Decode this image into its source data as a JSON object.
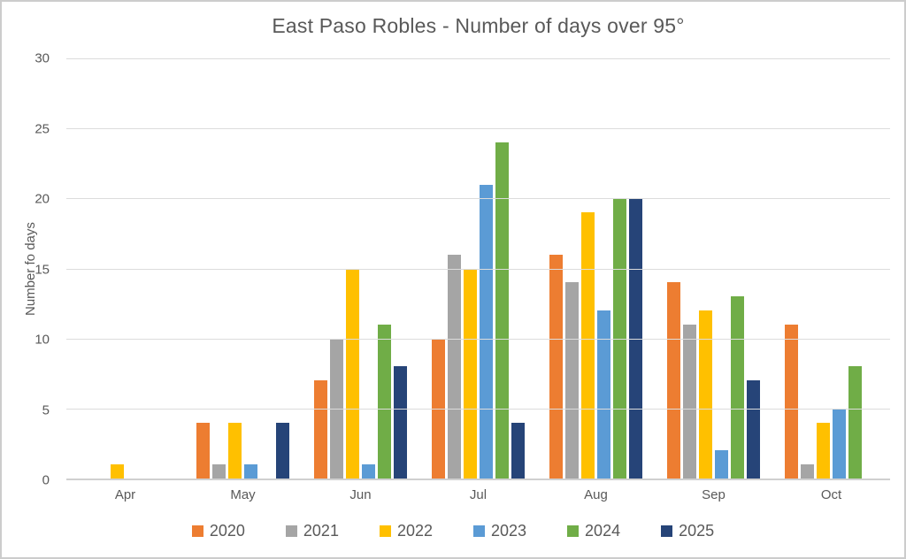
{
  "title": "East Paso Robles - Number of days over 95°",
  "chart_data": {
    "type": "bar",
    "title": "East Paso Robles - Number of days over 95°",
    "xlabel": "",
    "ylabel": "Number fo days",
    "categories": [
      "Apr",
      "May",
      "Jun",
      "Jul",
      "Aug",
      "Sep",
      "Oct"
    ],
    "series": [
      {
        "name": "2020",
        "color": "#ED7D31",
        "values": [
          0,
          4,
          7,
          10,
          16,
          14,
          11
        ]
      },
      {
        "name": "2021",
        "color": "#A5A5A5",
        "values": [
          0,
          1,
          10,
          16,
          14,
          11,
          1
        ]
      },
      {
        "name": "2022",
        "color": "#FFC000",
        "values": [
          1,
          4,
          15,
          15,
          19,
          12,
          4
        ]
      },
      {
        "name": "2023",
        "color": "#5B9BD5",
        "values": [
          0,
          1,
          1,
          21,
          12,
          2,
          5
        ]
      },
      {
        "name": "2024",
        "color": "#70AD47",
        "values": [
          0,
          0,
          11,
          24,
          20,
          13,
          8
        ]
      },
      {
        "name": "2025",
        "color": "#264478",
        "values": [
          0,
          4,
          8,
          4,
          20,
          7,
          0
        ]
      }
    ],
    "ylim": [
      0,
      30
    ],
    "y_ticks": [
      0,
      5,
      10,
      15,
      20,
      25,
      30
    ],
    "grid": true,
    "legend_position": "bottom"
  },
  "colors": {
    "text": "#595959",
    "gridline": "#dcdcdc",
    "axis_line": "#d0d0d0",
    "background": "#ffffff"
  }
}
